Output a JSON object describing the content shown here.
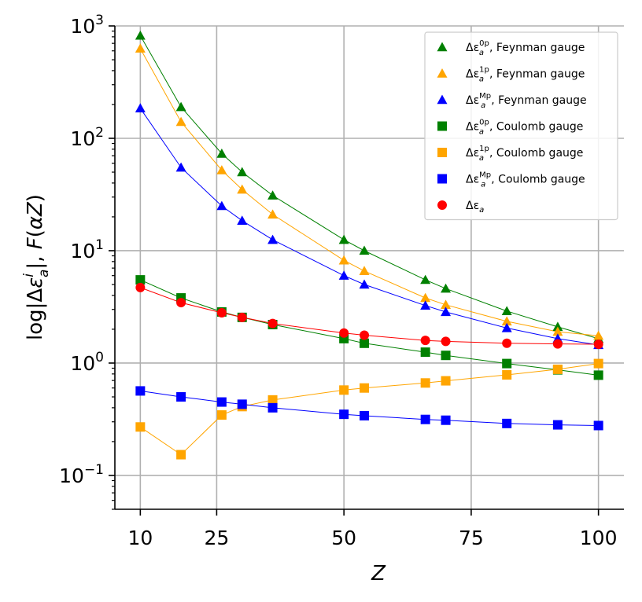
{
  "chart_data": {
    "type": "scatter",
    "yscale": "log",
    "xlabel": "Z",
    "ylabel": "log|Δε_a^i|, F(αZ)",
    "xlim": [
      5,
      105
    ],
    "ylim": [
      0.05,
      1000
    ],
    "xticks": [
      10,
      25,
      50,
      75,
      100
    ],
    "xtick_labels": [
      "10",
      "25",
      "50",
      "75",
      "100"
    ],
    "yticks": [
      0.1,
      1,
      10,
      100,
      1000
    ],
    "ytick_labels": [
      {
        "base": "10",
        "exp": "−1"
      },
      {
        "base": "10",
        "exp": "0"
      },
      {
        "base": "10",
        "exp": "1"
      },
      {
        "base": "10",
        "exp": "2"
      },
      {
        "base": "10",
        "exp": "3"
      }
    ],
    "grid": true,
    "legend_position": "top-right",
    "series": [
      {
        "name": "Δε_a^0p, Feynman gauge",
        "label_main": "Δε",
        "label_sub": "a",
        "label_sup": "0p",
        "label_rest": ", Feynman gauge",
        "marker": "triangle",
        "color": "#008000",
        "x": [
          10,
          18,
          26,
          30,
          36,
          50,
          54,
          66,
          70,
          82,
          92,
          100
        ],
        "y": [
          820,
          190,
          73,
          50,
          31,
          12.5,
          10,
          5.5,
          4.6,
          2.9,
          2.1,
          1.65
        ]
      },
      {
        "name": "Δε_a^1p, Feynman gauge",
        "label_main": "Δε",
        "label_sub": "a",
        "label_sup": "1p",
        "label_rest": ", Feynman gauge",
        "marker": "triangle",
        "color": "#FFA500",
        "x": [
          10,
          18,
          26,
          30,
          36,
          50,
          54,
          66,
          70,
          82,
          92,
          100
        ],
        "y": [
          630,
          140,
          52,
          35,
          21,
          8.2,
          6.6,
          3.8,
          3.3,
          2.35,
          1.9,
          1.75
        ]
      },
      {
        "name": "Δε_a^Mp, Feynman gauge",
        "label_main": "Δε",
        "label_sub": "a",
        "label_sup": "Mp",
        "label_rest": ", Feynman gauge",
        "marker": "triangle",
        "color": "#0000FF",
        "x": [
          10,
          18,
          26,
          30,
          36,
          50,
          54,
          66,
          70,
          82,
          92,
          100
        ],
        "y": [
          185,
          55,
          25,
          18.5,
          12.5,
          6.0,
          5.0,
          3.25,
          2.85,
          2.05,
          1.65,
          1.45
        ]
      },
      {
        "name": "Δε_a^0p, Coulomb gauge",
        "label_main": "Δε",
        "label_sub": "a",
        "label_sup": "0p",
        "label_rest": ", Coulomb gauge",
        "marker": "square",
        "color": "#008000",
        "x": [
          10,
          18,
          26,
          30,
          36,
          50,
          54,
          66,
          70,
          82,
          92,
          100
        ],
        "y": [
          5.5,
          3.8,
          2.85,
          2.55,
          2.2,
          1.65,
          1.5,
          1.25,
          1.17,
          0.99,
          0.87,
          0.78
        ]
      },
      {
        "name": "Δε_a^1p, Coulomb gauge",
        "label_main": "Δε",
        "label_sub": "a",
        "label_sup": "1p",
        "label_rest": ", Coulomb gauge",
        "marker": "square",
        "color": "#FFA500",
        "x": [
          10,
          18,
          26,
          30,
          36,
          50,
          54,
          66,
          70,
          82,
          92,
          100
        ],
        "y": [
          0.27,
          0.153,
          0.345,
          0.41,
          0.47,
          0.575,
          0.6,
          0.665,
          0.695,
          0.785,
          0.88,
          0.99
        ]
      },
      {
        "name": "Δε_a^Mp, Coulomb gauge",
        "label_main": "Δε",
        "label_sub": "a",
        "label_sup": "Mp",
        "label_rest": ", Coulomb gauge",
        "marker": "square",
        "color": "#0000FF",
        "x": [
          10,
          18,
          26,
          30,
          36,
          50,
          54,
          66,
          70,
          82,
          92,
          100
        ],
        "y": [
          0.565,
          0.5,
          0.45,
          0.43,
          0.4,
          0.35,
          0.34,
          0.315,
          0.31,
          0.29,
          0.282,
          0.278
        ]
      },
      {
        "name": "Δε_a",
        "label_main": "Δε",
        "label_sub": "a",
        "label_sup": "",
        "label_rest": "",
        "marker": "circle",
        "color": "#FF0000",
        "x": [
          10,
          18,
          26,
          30,
          36,
          50,
          54,
          66,
          70,
          82,
          92,
          100
        ],
        "y": [
          4.7,
          3.45,
          2.8,
          2.55,
          2.25,
          1.85,
          1.77,
          1.59,
          1.56,
          1.5,
          1.48,
          1.47
        ]
      }
    ]
  }
}
